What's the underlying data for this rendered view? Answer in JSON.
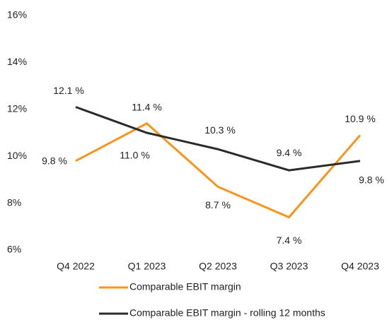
{
  "chart_data": {
    "type": "line",
    "categories": [
      "Q4 2022",
      "Q1 2023",
      "Q2 2023",
      "Q3 2023",
      "Q4 2023"
    ],
    "series": [
      {
        "name": "Comparable EBIT margin",
        "color": "#f7941d",
        "values": [
          9.8,
          11.4,
          8.7,
          7.4,
          10.9
        ],
        "value_labels": [
          "9.8 %",
          "11.4 %",
          "8.7 %",
          "7.4 %",
          "10.9 %"
        ]
      },
      {
        "name": "Comparable EBIT margin - rolling 12 months",
        "color": "#2b2b2b",
        "values": [
          12.1,
          11.0,
          10.3,
          9.4,
          9.8
        ],
        "value_labels": [
          "12.1 %",
          "11.0 %",
          "10.3 %",
          "9.4 %",
          "9.8 %"
        ]
      }
    ],
    "ylim": [
      6,
      16
    ],
    "yticks": [
      {
        "value": 6,
        "label": "6%"
      },
      {
        "value": 8,
        "label": "8%"
      },
      {
        "value": 10,
        "label": "10%"
      },
      {
        "value": 12,
        "label": "12%"
      },
      {
        "value": 14,
        "label": "14%"
      },
      {
        "value": 16,
        "label": "16%"
      }
    ],
    "grid": false
  }
}
